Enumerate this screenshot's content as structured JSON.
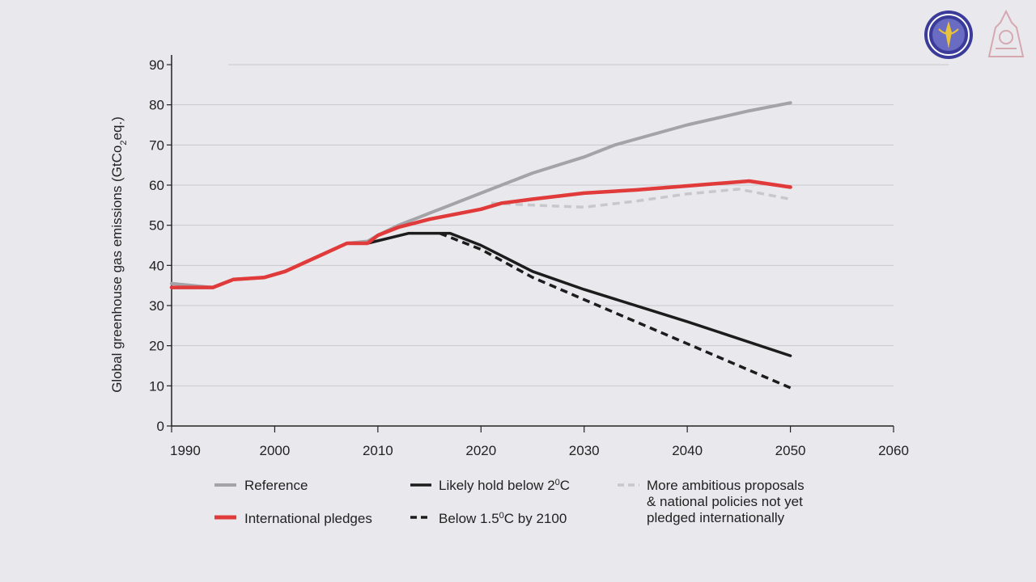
{
  "chart_data": {
    "type": "line",
    "ylabel_main": "Global greenhouse gas emissions (GtCo",
    "ylabel_sub": "2",
    "ylabel_end": "eq.)",
    "xlim": [
      1990,
      2060
    ],
    "ylim": [
      0,
      90
    ],
    "x_ticks": [
      1990,
      2000,
      2010,
      2020,
      2030,
      2040,
      2050,
      2060
    ],
    "y_ticks": [
      0,
      10,
      20,
      30,
      40,
      50,
      60,
      70,
      80,
      90
    ],
    "grid": true,
    "series": [
      {
        "id": "reference",
        "name": "Reference",
        "color": "#a4a4a8",
        "style": "solid",
        "points": [
          [
            1990,
            35.5
          ],
          [
            1994,
            34.5
          ],
          [
            1996,
            36.5
          ],
          [
            1999,
            37
          ],
          [
            2001,
            38.5
          ],
          [
            2004,
            42
          ],
          [
            2007,
            45.5
          ],
          [
            2009,
            46
          ],
          [
            2010,
            47.5
          ],
          [
            2012,
            50
          ],
          [
            2015,
            53
          ],
          [
            2020,
            58
          ],
          [
            2025,
            63
          ],
          [
            2030,
            67
          ],
          [
            2033,
            70
          ],
          [
            2040,
            75
          ],
          [
            2046,
            78.5
          ],
          [
            2050,
            80.5
          ]
        ]
      },
      {
        "id": "intl-pledges",
        "name": "International pledges",
        "color": "#e03a3a",
        "style": "solid",
        "points": [
          [
            1990,
            34.5
          ],
          [
            1994,
            34.5
          ],
          [
            1996,
            36.5
          ],
          [
            1999,
            37
          ],
          [
            2001,
            38.5
          ],
          [
            2004,
            42
          ],
          [
            2007,
            45.5
          ],
          [
            2009,
            45.5
          ],
          [
            2010,
            47.5
          ],
          [
            2012,
            49.5
          ],
          [
            2015,
            51.5
          ],
          [
            2020,
            54
          ],
          [
            2022,
            55.5
          ],
          [
            2025,
            56.5
          ],
          [
            2030,
            58
          ],
          [
            2035,
            58.8
          ],
          [
            2040,
            59.8
          ],
          [
            2046,
            61
          ],
          [
            2050,
            59.5
          ]
        ]
      },
      {
        "id": "ambitious",
        "name": "More ambitious proposals & national policies not yet pledged internationally",
        "color": "#c8c8cc",
        "style": "dashed",
        "points": [
          [
            2021,
            55.5
          ],
          [
            2025,
            55
          ],
          [
            2030,
            54.5
          ],
          [
            2035,
            56
          ],
          [
            2040,
            57.8
          ],
          [
            2045,
            59
          ],
          [
            2050,
            56.5
          ]
        ]
      },
      {
        "id": "likely-2c",
        "name": "Likely hold below 2°C",
        "color": "#1c1c1c",
        "style": "solid",
        "points": [
          [
            2007,
            45.5
          ],
          [
            2009,
            45.5
          ],
          [
            2013,
            48
          ],
          [
            2017,
            48
          ],
          [
            2020,
            45
          ],
          [
            2025,
            38.5
          ],
          [
            2030,
            34
          ],
          [
            2040,
            26
          ],
          [
            2050,
            17.5
          ]
        ]
      },
      {
        "id": "below-1-5c",
        "name": "Below 1.5°C by 2100",
        "color": "#1c1c1c",
        "style": "dashed",
        "points": [
          [
            2016,
            48
          ],
          [
            2020,
            44
          ],
          [
            2025,
            37
          ],
          [
            2030,
            31.5
          ],
          [
            2040,
            20.5
          ],
          [
            2050,
            9.5
          ]
        ]
      }
    ],
    "legend": {
      "reference": "Reference",
      "intl_pledges": "International pledges",
      "likely_2c_main": "Likely hold below 2",
      "likely_2c_sup": "0",
      "likely_2c_end": "C",
      "below_15_main": "Below 1.5",
      "below_15_sup": "0",
      "below_15_end": "C by 2100",
      "ambitious_line1": "More ambitious proposals",
      "ambitious_line2": "& national policies not yet",
      "ambitious_line3": "pledged internationally"
    }
  },
  "logos": {
    "left_color": "#3b3c9a",
    "left_ring": "#ffffff",
    "right_color": "#d6a9b0"
  }
}
